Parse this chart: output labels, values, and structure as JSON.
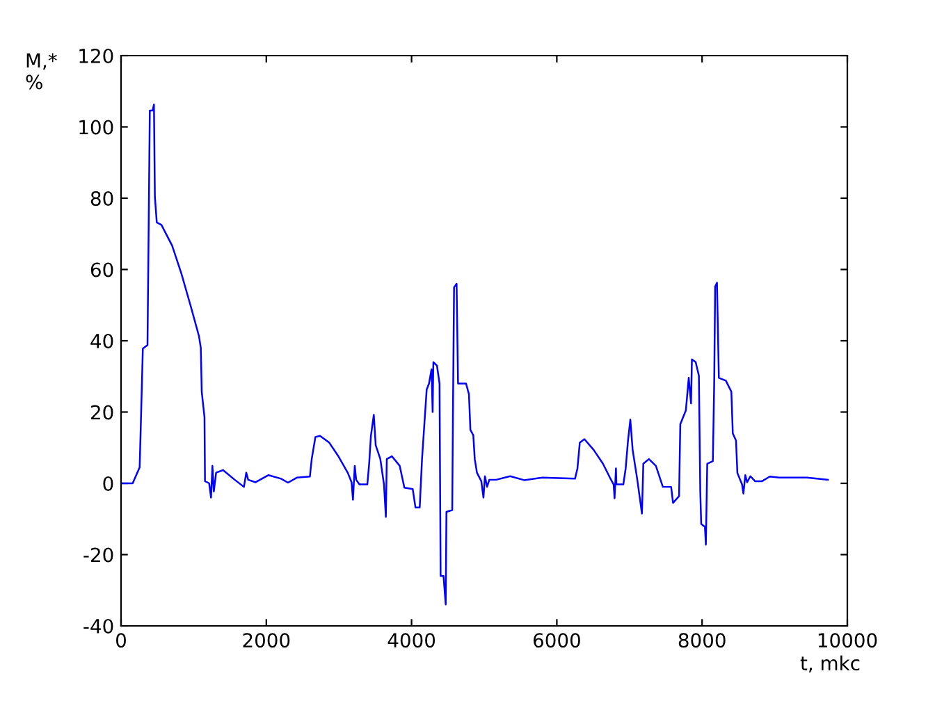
{
  "chart_data": {
    "type": "line",
    "xlabel": "t, mkc",
    "ylabel": "M,*\n%",
    "xlim": [
      0,
      10000
    ],
    "ylim": [
      -40,
      120
    ],
    "xticks": [
      0,
      2000,
      4000,
      6000,
      8000,
      10000
    ],
    "yticks": [
      -40,
      -20,
      0,
      20,
      40,
      60,
      80,
      100,
      120
    ],
    "grid": false,
    "marker": "none",
    "line_style": "solid",
    "series": [
      {
        "color": "#0000ff",
        "x": [
          0,
          160,
          256,
          275,
          300,
          364,
          377,
          396,
          434,
          453,
          466,
          492,
          556,
          703,
          830,
          958,
          1073,
          1098,
          1111,
          1149,
          1156,
          1213,
          1239,
          1258,
          1277,
          1309,
          1405,
          1565,
          1692,
          1724,
          1750,
          1852,
          2031,
          2203,
          2299,
          2420,
          2600,
          2625,
          2676,
          2740,
          2867,
          2995,
          3123,
          3174,
          3193,
          3218,
          3237,
          3282,
          3391,
          3416,
          3440,
          3480,
          3506,
          3570,
          3620,
          3646,
          3659,
          3729,
          3837,
          3901,
          4016,
          4054,
          4112,
          4144,
          4208,
          4240,
          4275,
          4290,
          4300,
          4350,
          4385,
          4400,
          4440,
          4470,
          4480,
          4560,
          4570,
          4585,
          4620,
          4640,
          4750,
          4790,
          4810,
          4850,
          4870,
          4900,
          4960,
          4990,
          5010,
          5040,
          5070,
          5166,
          5358,
          5550,
          5800,
          6251,
          6284,
          6316,
          6380,
          6507,
          6635,
          6731,
          6782,
          6795,
          6814,
          6820,
          6916,
          6948,
          6980,
          7012,
          7044,
          7108,
          7172,
          7191,
          7268,
          7364,
          7460,
          7574,
          7600,
          7683,
          7700,
          7777,
          7816,
          7848,
          7860,
          7912,
          7956,
          7975,
          7988,
          8039,
          8052,
          8071,
          8148,
          8167,
          8180,
          8205,
          8231,
          8327,
          8403,
          8423,
          8467,
          8486,
          8550,
          8569,
          8595,
          8620,
          8665,
          8729,
          8826,
          8933,
          9061,
          9444,
          9732
        ],
        "values": [
          0,
          0,
          4.5,
          18.5,
          37.8,
          38.8,
          65,
          104.6,
          104.6,
          106.3,
          80.3,
          73.2,
          72.5,
          66.7,
          58.9,
          49.8,
          41.3,
          38,
          25.7,
          18.5,
          0.6,
          0,
          -4,
          4.9,
          -2.3,
          3,
          3.7,
          1,
          -1,
          3,
          1,
          0.3,
          2.3,
          1.3,
          0.2,
          1.6,
          1.9,
          6.8,
          13,
          13.3,
          11.4,
          7.5,
          2.9,
          0.3,
          -4.6,
          4.9,
          1,
          -0.3,
          -0.3,
          5.5,
          13.3,
          19.2,
          10.7,
          6.8,
          -0.3,
          -9.4,
          6.8,
          7.6,
          4.9,
          -1.2,
          -1.6,
          -6.8,
          -6.8,
          6.8,
          26.3,
          28,
          32,
          20,
          34,
          33,
          28,
          -26,
          -26,
          -34,
          -8,
          -7.5,
          20,
          55,
          56,
          28,
          28,
          25,
          15,
          13.5,
          6.8,
          3,
          0.6,
          -4,
          2,
          -1,
          1,
          1,
          2,
          0.9,
          1.6,
          1.3,
          4.2,
          11.4,
          12.4,
          9.4,
          5.5,
          1.6,
          -0.3,
          -4.2,
          4.2,
          -0.3,
          -0.3,
          4.2,
          12,
          17.9,
          9.4,
          1,
          -8.5,
          5.5,
          6.8,
          4.9,
          -1,
          -1,
          -5.5,
          -3.6,
          16.6,
          20.5,
          29.6,
          22.4,
          34.8,
          34,
          30.2,
          -2.3,
          -11.4,
          -12.2,
          -17.2,
          5.5,
          6.2,
          28.3,
          55.2,
          56.3,
          29.6,
          28.8,
          25.7,
          14,
          12,
          2.9,
          -0.3,
          -2.9,
          2.3,
          0.3,
          2,
          0.6,
          0.6,
          1.9,
          1.6,
          1.6,
          1
        ]
      }
    ]
  }
}
